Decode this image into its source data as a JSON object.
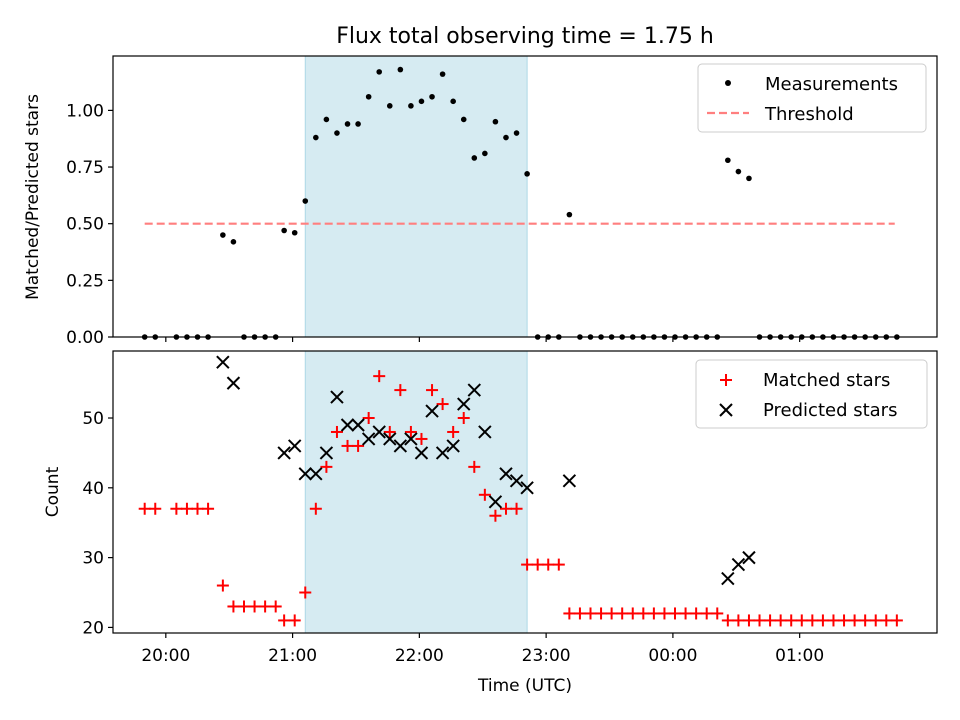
{
  "chart_data": [
    {
      "type": "scatter",
      "title": "Flux total observing time = 1.75 h",
      "ylabel": "Matched/Predicted stars",
      "xlabel": "",
      "xlim": [
        "19:35",
        "02:05"
      ],
      "ylim": [
        0.0,
        1.24
      ],
      "yticks": [
        "0.00",
        "0.25",
        "0.50",
        "0.75",
        "1.00"
      ],
      "grid": false,
      "legend_position": "top-right",
      "shaded_region": {
        "start": "21:06",
        "end": "22:51",
        "color": "#add8e6"
      },
      "threshold": {
        "name": "Threshold",
        "value": 0.5,
        "from": "19:50",
        "to": "01:45",
        "color": "#ff7f7f"
      },
      "series": [
        {
          "name": "Measurements",
          "color": "#000000",
          "marker": "dot",
          "points": [
            [
              "19:50",
              0.0
            ],
            [
              "19:55",
              0.0
            ],
            [
              "20:05",
              0.0
            ],
            [
              "20:10",
              0.0
            ],
            [
              "20:15",
              0.0
            ],
            [
              "20:20",
              0.0
            ],
            [
              "20:27",
              0.45
            ],
            [
              "20:32",
              0.42
            ],
            [
              "20:37",
              0.0
            ],
            [
              "20:42",
              0.0
            ],
            [
              "20:47",
              0.0
            ],
            [
              "20:52",
              0.0
            ],
            [
              "20:56",
              0.47
            ],
            [
              "21:01",
              0.46
            ],
            [
              "21:06",
              0.6
            ],
            [
              "21:11",
              0.88
            ],
            [
              "21:16",
              0.96
            ],
            [
              "21:21",
              0.9
            ],
            [
              "21:26",
              0.94
            ],
            [
              "21:31",
              0.94
            ],
            [
              "21:36",
              1.06
            ],
            [
              "21:41",
              1.17
            ],
            [
              "21:46",
              1.02
            ],
            [
              "21:51",
              1.18
            ],
            [
              "21:56",
              1.02
            ],
            [
              "22:01",
              1.04
            ],
            [
              "22:06",
              1.06
            ],
            [
              "22:11",
              1.16
            ],
            [
              "22:16",
              1.04
            ],
            [
              "22:21",
              0.96
            ],
            [
              "22:26",
              0.79
            ],
            [
              "22:31",
              0.81
            ],
            [
              "22:36",
              0.95
            ],
            [
              "22:41",
              0.88
            ],
            [
              "22:46",
              0.9
            ],
            [
              "22:51",
              0.72
            ],
            [
              "22:56",
              0.0
            ],
            [
              "23:01",
              0.0
            ],
            [
              "23:06",
              0.0
            ],
            [
              "23:11",
              0.54
            ],
            [
              "23:16",
              0.0
            ],
            [
              "23:21",
              0.0
            ],
            [
              "23:26",
              0.0
            ],
            [
              "23:31",
              0.0
            ],
            [
              "23:36",
              0.0
            ],
            [
              "23:41",
              0.0
            ],
            [
              "23:46",
              0.0
            ],
            [
              "23:51",
              0.0
            ],
            [
              "23:56",
              0.0
            ],
            [
              "00:01",
              0.0
            ],
            [
              "00:06",
              0.0
            ],
            [
              "00:11",
              0.0
            ],
            [
              "00:16",
              0.0
            ],
            [
              "00:21",
              0.0
            ],
            [
              "00:26",
              0.78
            ],
            [
              "00:31",
              0.73
            ],
            [
              "00:36",
              0.7
            ],
            [
              "00:41",
              0.0
            ],
            [
              "00:46",
              0.0
            ],
            [
              "00:51",
              0.0
            ],
            [
              "00:56",
              0.0
            ],
            [
              "01:01",
              0.0
            ],
            [
              "01:06",
              0.0
            ],
            [
              "01:11",
              0.0
            ],
            [
              "01:16",
              0.0
            ],
            [
              "01:21",
              0.0
            ],
            [
              "01:26",
              0.0
            ],
            [
              "01:31",
              0.0
            ],
            [
              "01:36",
              0.0
            ],
            [
              "01:41",
              0.0
            ],
            [
              "01:46",
              0.0
            ]
          ]
        }
      ]
    },
    {
      "type": "scatter",
      "title": "",
      "xlabel": "Time (UTC)",
      "ylabel": "Count",
      "xlim": [
        "19:35",
        "02:05"
      ],
      "ylim": [
        19.2,
        59.6
      ],
      "xticks": [
        "20:00",
        "21:00",
        "22:00",
        "23:00",
        "00:00",
        "01:00"
      ],
      "yticks": [
        "20",
        "30",
        "40",
        "50"
      ],
      "grid": false,
      "legend_position": "top-right",
      "shaded_region": {
        "start": "21:06",
        "end": "22:51",
        "color": "#add8e6"
      },
      "series": [
        {
          "name": "Matched stars",
          "color": "#ff0000",
          "marker": "plus",
          "points": [
            [
              "19:50",
              37
            ],
            [
              "19:55",
              37
            ],
            [
              "20:05",
              37
            ],
            [
              "20:10",
              37
            ],
            [
              "20:15",
              37
            ],
            [
              "20:20",
              37
            ],
            [
              "20:27",
              26
            ],
            [
              "20:32",
              23
            ],
            [
              "20:37",
              23
            ],
            [
              "20:42",
              23
            ],
            [
              "20:47",
              23
            ],
            [
              "20:52",
              23
            ],
            [
              "20:56",
              21
            ],
            [
              "21:01",
              21
            ],
            [
              "21:06",
              25
            ],
            [
              "21:11",
              37
            ],
            [
              "21:16",
              43
            ],
            [
              "21:21",
              48
            ],
            [
              "21:26",
              46
            ],
            [
              "21:31",
              46
            ],
            [
              "21:36",
              50
            ],
            [
              "21:41",
              56
            ],
            [
              "21:46",
              48
            ],
            [
              "21:51",
              54
            ],
            [
              "21:56",
              48
            ],
            [
              "22:01",
              47
            ],
            [
              "22:06",
              54
            ],
            [
              "22:11",
              52
            ],
            [
              "22:16",
              48
            ],
            [
              "22:21",
              50
            ],
            [
              "22:26",
              43
            ],
            [
              "22:31",
              39
            ],
            [
              "22:36",
              36
            ],
            [
              "22:41",
              37
            ],
            [
              "22:46",
              37
            ],
            [
              "22:51",
              29
            ],
            [
              "22:56",
              29
            ],
            [
              "23:01",
              29
            ],
            [
              "23:06",
              29
            ],
            [
              "23:11",
              22
            ],
            [
              "23:16",
              22
            ],
            [
              "23:21",
              22
            ],
            [
              "23:26",
              22
            ],
            [
              "23:31",
              22
            ],
            [
              "23:36",
              22
            ],
            [
              "23:41",
              22
            ],
            [
              "23:46",
              22
            ],
            [
              "23:51",
              22
            ],
            [
              "23:56",
              22
            ],
            [
              "00:01",
              22
            ],
            [
              "00:06",
              22
            ],
            [
              "00:11",
              22
            ],
            [
              "00:16",
              22
            ],
            [
              "00:21",
              22
            ],
            [
              "00:26",
              21
            ],
            [
              "00:31",
              21
            ],
            [
              "00:36",
              21
            ],
            [
              "00:41",
              21
            ],
            [
              "00:46",
              21
            ],
            [
              "00:51",
              21
            ],
            [
              "00:56",
              21
            ],
            [
              "01:01",
              21
            ],
            [
              "01:06",
              21
            ],
            [
              "01:11",
              21
            ],
            [
              "01:16",
              21
            ],
            [
              "01:21",
              21
            ],
            [
              "01:26",
              21
            ],
            [
              "01:31",
              21
            ],
            [
              "01:36",
              21
            ],
            [
              "01:41",
              21
            ],
            [
              "01:46",
              21
            ]
          ]
        },
        {
          "name": "Predicted stars",
          "color": "#000000",
          "marker": "x",
          "points": [
            [
              "20:27",
              58
            ],
            [
              "20:32",
              55
            ],
            [
              "20:56",
              45
            ],
            [
              "21:01",
              46
            ],
            [
              "21:06",
              42
            ],
            [
              "21:11",
              42
            ],
            [
              "21:16",
              45
            ],
            [
              "21:21",
              53
            ],
            [
              "21:26",
              49
            ],
            [
              "21:31",
              49
            ],
            [
              "21:36",
              47
            ],
            [
              "21:41",
              48
            ],
            [
              "21:46",
              47
            ],
            [
              "21:51",
              46
            ],
            [
              "21:56",
              47
            ],
            [
              "22:01",
              45
            ],
            [
              "22:06",
              51
            ],
            [
              "22:11",
              45
            ],
            [
              "22:16",
              46
            ],
            [
              "22:21",
              52
            ],
            [
              "22:26",
              54
            ],
            [
              "22:31",
              48
            ],
            [
              "22:36",
              38
            ],
            [
              "22:41",
              42
            ],
            [
              "22:46",
              41
            ],
            [
              "22:51",
              40
            ],
            [
              "23:11",
              41
            ],
            [
              "00:26",
              27
            ],
            [
              "00:31",
              29
            ],
            [
              "00:36",
              30
            ]
          ]
        }
      ]
    }
  ]
}
